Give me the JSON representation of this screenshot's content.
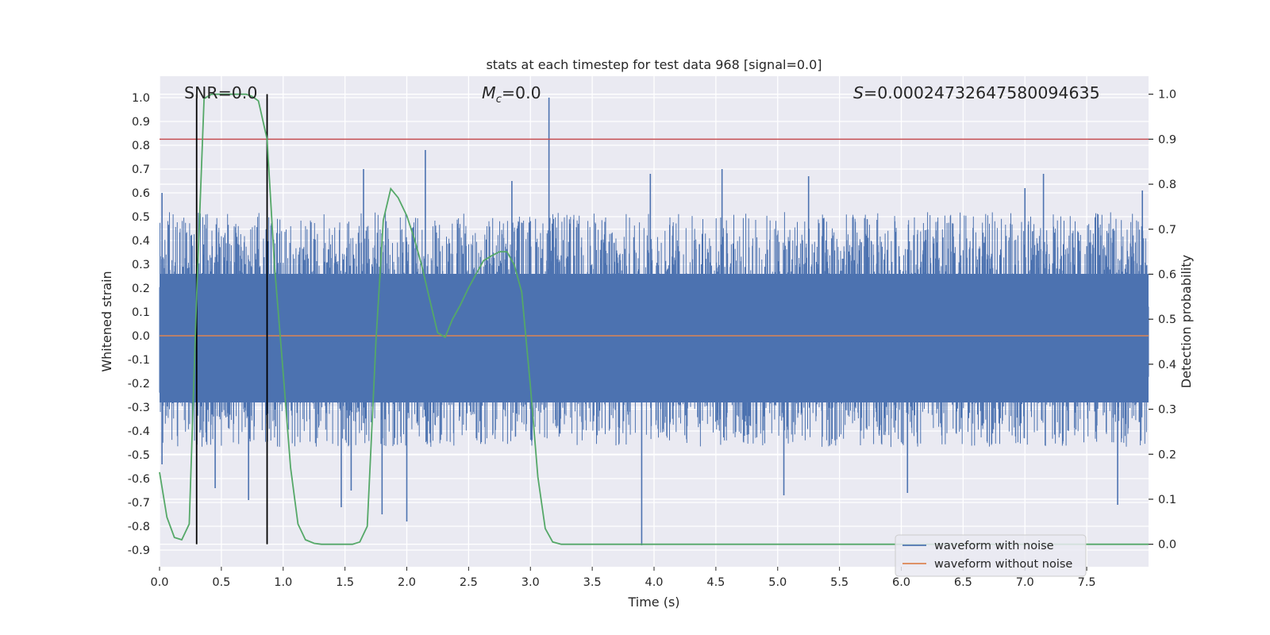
{
  "chart_data": {
    "type": "line",
    "title": "stats at each timestep for test data 968 [signal=0.0]",
    "xlabel": "Time (s)",
    "ylabel_left": "Whitened strain",
    "ylabel_right": "Detection probability",
    "annotations": {
      "snr": "SNR=0.0",
      "mc_symbol": "M",
      "mc_sub": "c",
      "mc_value": "=0.0",
      "s_symbol": "S",
      "s_value": "=0.00024732647580094635"
    },
    "xlim": [
      0.0,
      8.0
    ],
    "ylim_left": [
      -0.97,
      1.09
    ],
    "ylim_right": [
      -0.05,
      1.04
    ],
    "x_ticks": [
      "0.0",
      "0.5",
      "1.0",
      "1.5",
      "2.0",
      "2.5",
      "3.0",
      "3.5",
      "4.0",
      "4.5",
      "5.0",
      "5.5",
      "6.0",
      "6.5",
      "7.0",
      "7.5"
    ],
    "y_ticks_left": [
      "1.0",
      "0.9",
      "0.8",
      "0.7",
      "0.6",
      "0.5",
      "0.4",
      "0.3",
      "0.2",
      "0.1",
      "0.0",
      "-0.1",
      "-0.2",
      "-0.3",
      "-0.4",
      "-0.5",
      "-0.6",
      "-0.7",
      "-0.8",
      "-0.9"
    ],
    "y_ticks_right": [
      "1.0",
      "0.9",
      "0.8",
      "0.7",
      "0.6",
      "0.5",
      "0.4",
      "0.3",
      "0.2",
      "0.1",
      "0.0"
    ],
    "grid": true,
    "legend_position": "lower right",
    "threshold_probability": 0.9,
    "window_markers_x": [
      0.3,
      0.87
    ],
    "series": [
      {
        "name": "waveform with noise",
        "axis": "left",
        "color": "#4c72b0",
        "envelope_typical": [
          -0.45,
          0.5
        ],
        "spikes": [
          {
            "x": 0.02,
            "y": 0.6
          },
          {
            "x": 0.02,
            "y": -0.54
          },
          {
            "x": 0.3,
            "y": -0.35
          },
          {
            "x": 0.45,
            "y": -0.64
          },
          {
            "x": 0.72,
            "y": -0.69
          },
          {
            "x": 1.47,
            "y": -0.72
          },
          {
            "x": 1.55,
            "y": -0.65
          },
          {
            "x": 1.65,
            "y": 0.7
          },
          {
            "x": 1.8,
            "y": -0.75
          },
          {
            "x": 2.0,
            "y": -0.78
          },
          {
            "x": 2.15,
            "y": 0.78
          },
          {
            "x": 2.85,
            "y": 0.65
          },
          {
            "x": 3.15,
            "y": 1.0
          },
          {
            "x": 3.9,
            "y": -0.88
          },
          {
            "x": 3.97,
            "y": 0.68
          },
          {
            "x": 4.55,
            "y": 0.7
          },
          {
            "x": 5.05,
            "y": -0.67
          },
          {
            "x": 5.25,
            "y": 0.67
          },
          {
            "x": 6.05,
            "y": -0.66
          },
          {
            "x": 7.0,
            "y": 0.62
          },
          {
            "x": 7.15,
            "y": 0.68
          },
          {
            "x": 7.75,
            "y": -0.71
          },
          {
            "x": 7.95,
            "y": 0.61
          }
        ]
      },
      {
        "name": "waveform without noise",
        "axis": "left",
        "color": "#dd8452",
        "x": [
          0.0,
          8.0
        ],
        "y": [
          0.0,
          0.0
        ]
      },
      {
        "name": "",
        "axis": "right",
        "color": "#55a868",
        "x": [
          0.0,
          0.06,
          0.12,
          0.18,
          0.24,
          0.3,
          0.36,
          0.42,
          0.48,
          0.55,
          0.62,
          0.7,
          0.75,
          0.8,
          0.87,
          0.93,
          1.0,
          1.06,
          1.12,
          1.18,
          1.25,
          1.31,
          1.37,
          1.43,
          1.5,
          1.56,
          1.62,
          1.68,
          1.75,
          1.81,
          1.87,
          1.93,
          2.0,
          2.06,
          2.12,
          2.18,
          2.25,
          2.31,
          2.37,
          2.43,
          2.5,
          2.56,
          2.62,
          2.68,
          2.75,
          2.81,
          2.87,
          2.93,
          3.0,
          3.06,
          3.12,
          3.18,
          3.25,
          3.31,
          3.5,
          4.0,
          5.0,
          6.0,
          7.0,
          8.0
        ],
        "y": [
          0.16,
          0.06,
          0.015,
          0.01,
          0.045,
          0.55,
          0.99,
          1.0,
          1.0,
          1.0,
          1.0,
          1.0,
          0.995,
          0.985,
          0.9,
          0.62,
          0.38,
          0.17,
          0.045,
          0.01,
          0.002,
          0.0,
          0.0,
          0.0,
          0.0,
          0.0,
          0.005,
          0.04,
          0.45,
          0.72,
          0.79,
          0.77,
          0.73,
          0.68,
          0.62,
          0.55,
          0.47,
          0.46,
          0.5,
          0.53,
          0.57,
          0.6,
          0.63,
          0.64,
          0.65,
          0.65,
          0.62,
          0.56,
          0.35,
          0.15,
          0.035,
          0.005,
          0.0,
          0.0,
          0.0,
          0.0,
          0.0,
          0.0,
          0.0,
          0.0
        ]
      }
    ],
    "threshold_color": "#c44e52",
    "marker_color": "#000000",
    "background_color": "#eaeaf2",
    "grid_color": "#ffffff"
  }
}
